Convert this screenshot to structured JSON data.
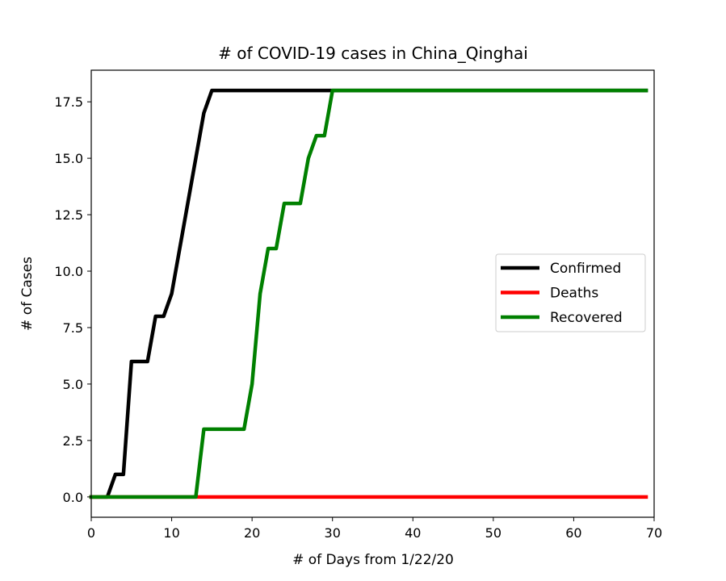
{
  "chart_data": {
    "type": "line",
    "title": "# of COVID-19 cases in China_Qinghai",
    "xlabel": "# of Days from 1/22/20",
    "ylabel": "# of Cases",
    "xlim": [
      0,
      70
    ],
    "ylim": [
      -0.9,
      18.9
    ],
    "xticks": [
      0,
      10,
      20,
      30,
      40,
      50,
      60,
      70
    ],
    "yticks": [
      0.0,
      2.5,
      5.0,
      7.5,
      10.0,
      12.5,
      15.0,
      17.5
    ],
    "ytick_labels": [
      "0.0",
      "2.5",
      "5.0",
      "7.5",
      "10.0",
      "12.5",
      "15.0",
      "17.5"
    ],
    "grid": false,
    "legend_position": "center-right",
    "series": [
      {
        "name": "Confirmed",
        "color": "#000000",
        "points": [
          [
            0,
            0
          ],
          [
            2,
            0
          ],
          [
            3,
            1
          ],
          [
            4,
            1
          ],
          [
            5,
            6
          ],
          [
            7,
            6
          ],
          [
            8,
            8
          ],
          [
            9,
            8
          ],
          [
            10,
            9
          ],
          [
            11,
            11
          ],
          [
            12,
            13
          ],
          [
            13,
            15
          ],
          [
            14,
            17
          ],
          [
            15,
            18
          ],
          [
            69,
            18
          ]
        ]
      },
      {
        "name": "Deaths",
        "color": "#ff0000",
        "points": [
          [
            0,
            0
          ],
          [
            69,
            0
          ]
        ]
      },
      {
        "name": "Recovered",
        "color": "#008000",
        "points": [
          [
            0,
            0
          ],
          [
            13,
            0
          ],
          [
            14,
            3
          ],
          [
            19,
            3
          ],
          [
            20,
            5
          ],
          [
            21,
            9
          ],
          [
            22,
            11
          ],
          [
            23,
            11
          ],
          [
            24,
            13
          ],
          [
            26,
            13
          ],
          [
            27,
            15
          ],
          [
            28,
            16
          ],
          [
            29,
            16
          ],
          [
            30,
            18
          ],
          [
            69,
            18
          ]
        ]
      }
    ]
  }
}
